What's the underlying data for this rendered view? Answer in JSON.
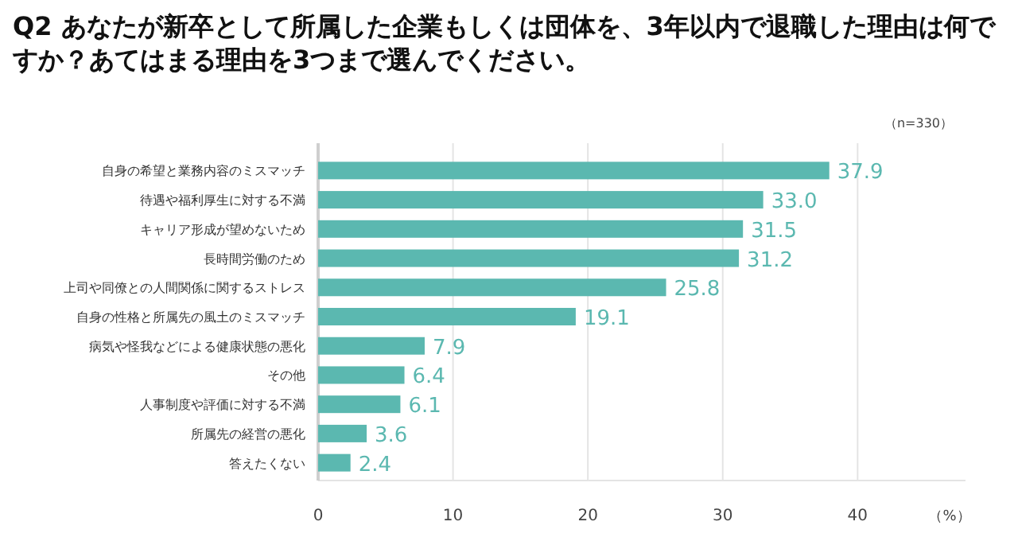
{
  "chart_data": {
    "type": "bar",
    "orientation": "horizontal",
    "title": "Q2 あなたが新卒として所属した企業もしくは団体を、3年以内で退職した理由は何ですか？あてはまる理由を3つまで選んでください。",
    "annotations": [
      "（n=330）"
    ],
    "xlabel": "（%）",
    "categories": [
      "自身の希望と業務内容のミスマッチ",
      "待遇や福利厚生に対する不満",
      "キャリア形成が望めないため",
      "長時間労働のため",
      "上司や同僚との人間関係に関するストレス",
      "自身の性格と所属先の風土のミスマッチ",
      "病気や怪我などによる健康状態の悪化",
      "その他",
      "人事制度や評価に対する不満",
      "所属先の経営の悪化",
      "答えたくない"
    ],
    "values": [
      37.9,
      33.0,
      31.5,
      31.2,
      25.8,
      19.1,
      7.9,
      6.4,
      6.1,
      3.6,
      2.4
    ],
    "value_labels": [
      "37.9",
      "33.0",
      "31.5",
      "31.2",
      "25.8",
      "19.1",
      "7.9",
      "6.4",
      "6.1",
      "3.6",
      "2.4"
    ],
    "color": "#5bb8b0",
    "xlim": [
      0,
      48
    ],
    "xticks": [
      0,
      10,
      20,
      30,
      40
    ],
    "grid": "x"
  }
}
